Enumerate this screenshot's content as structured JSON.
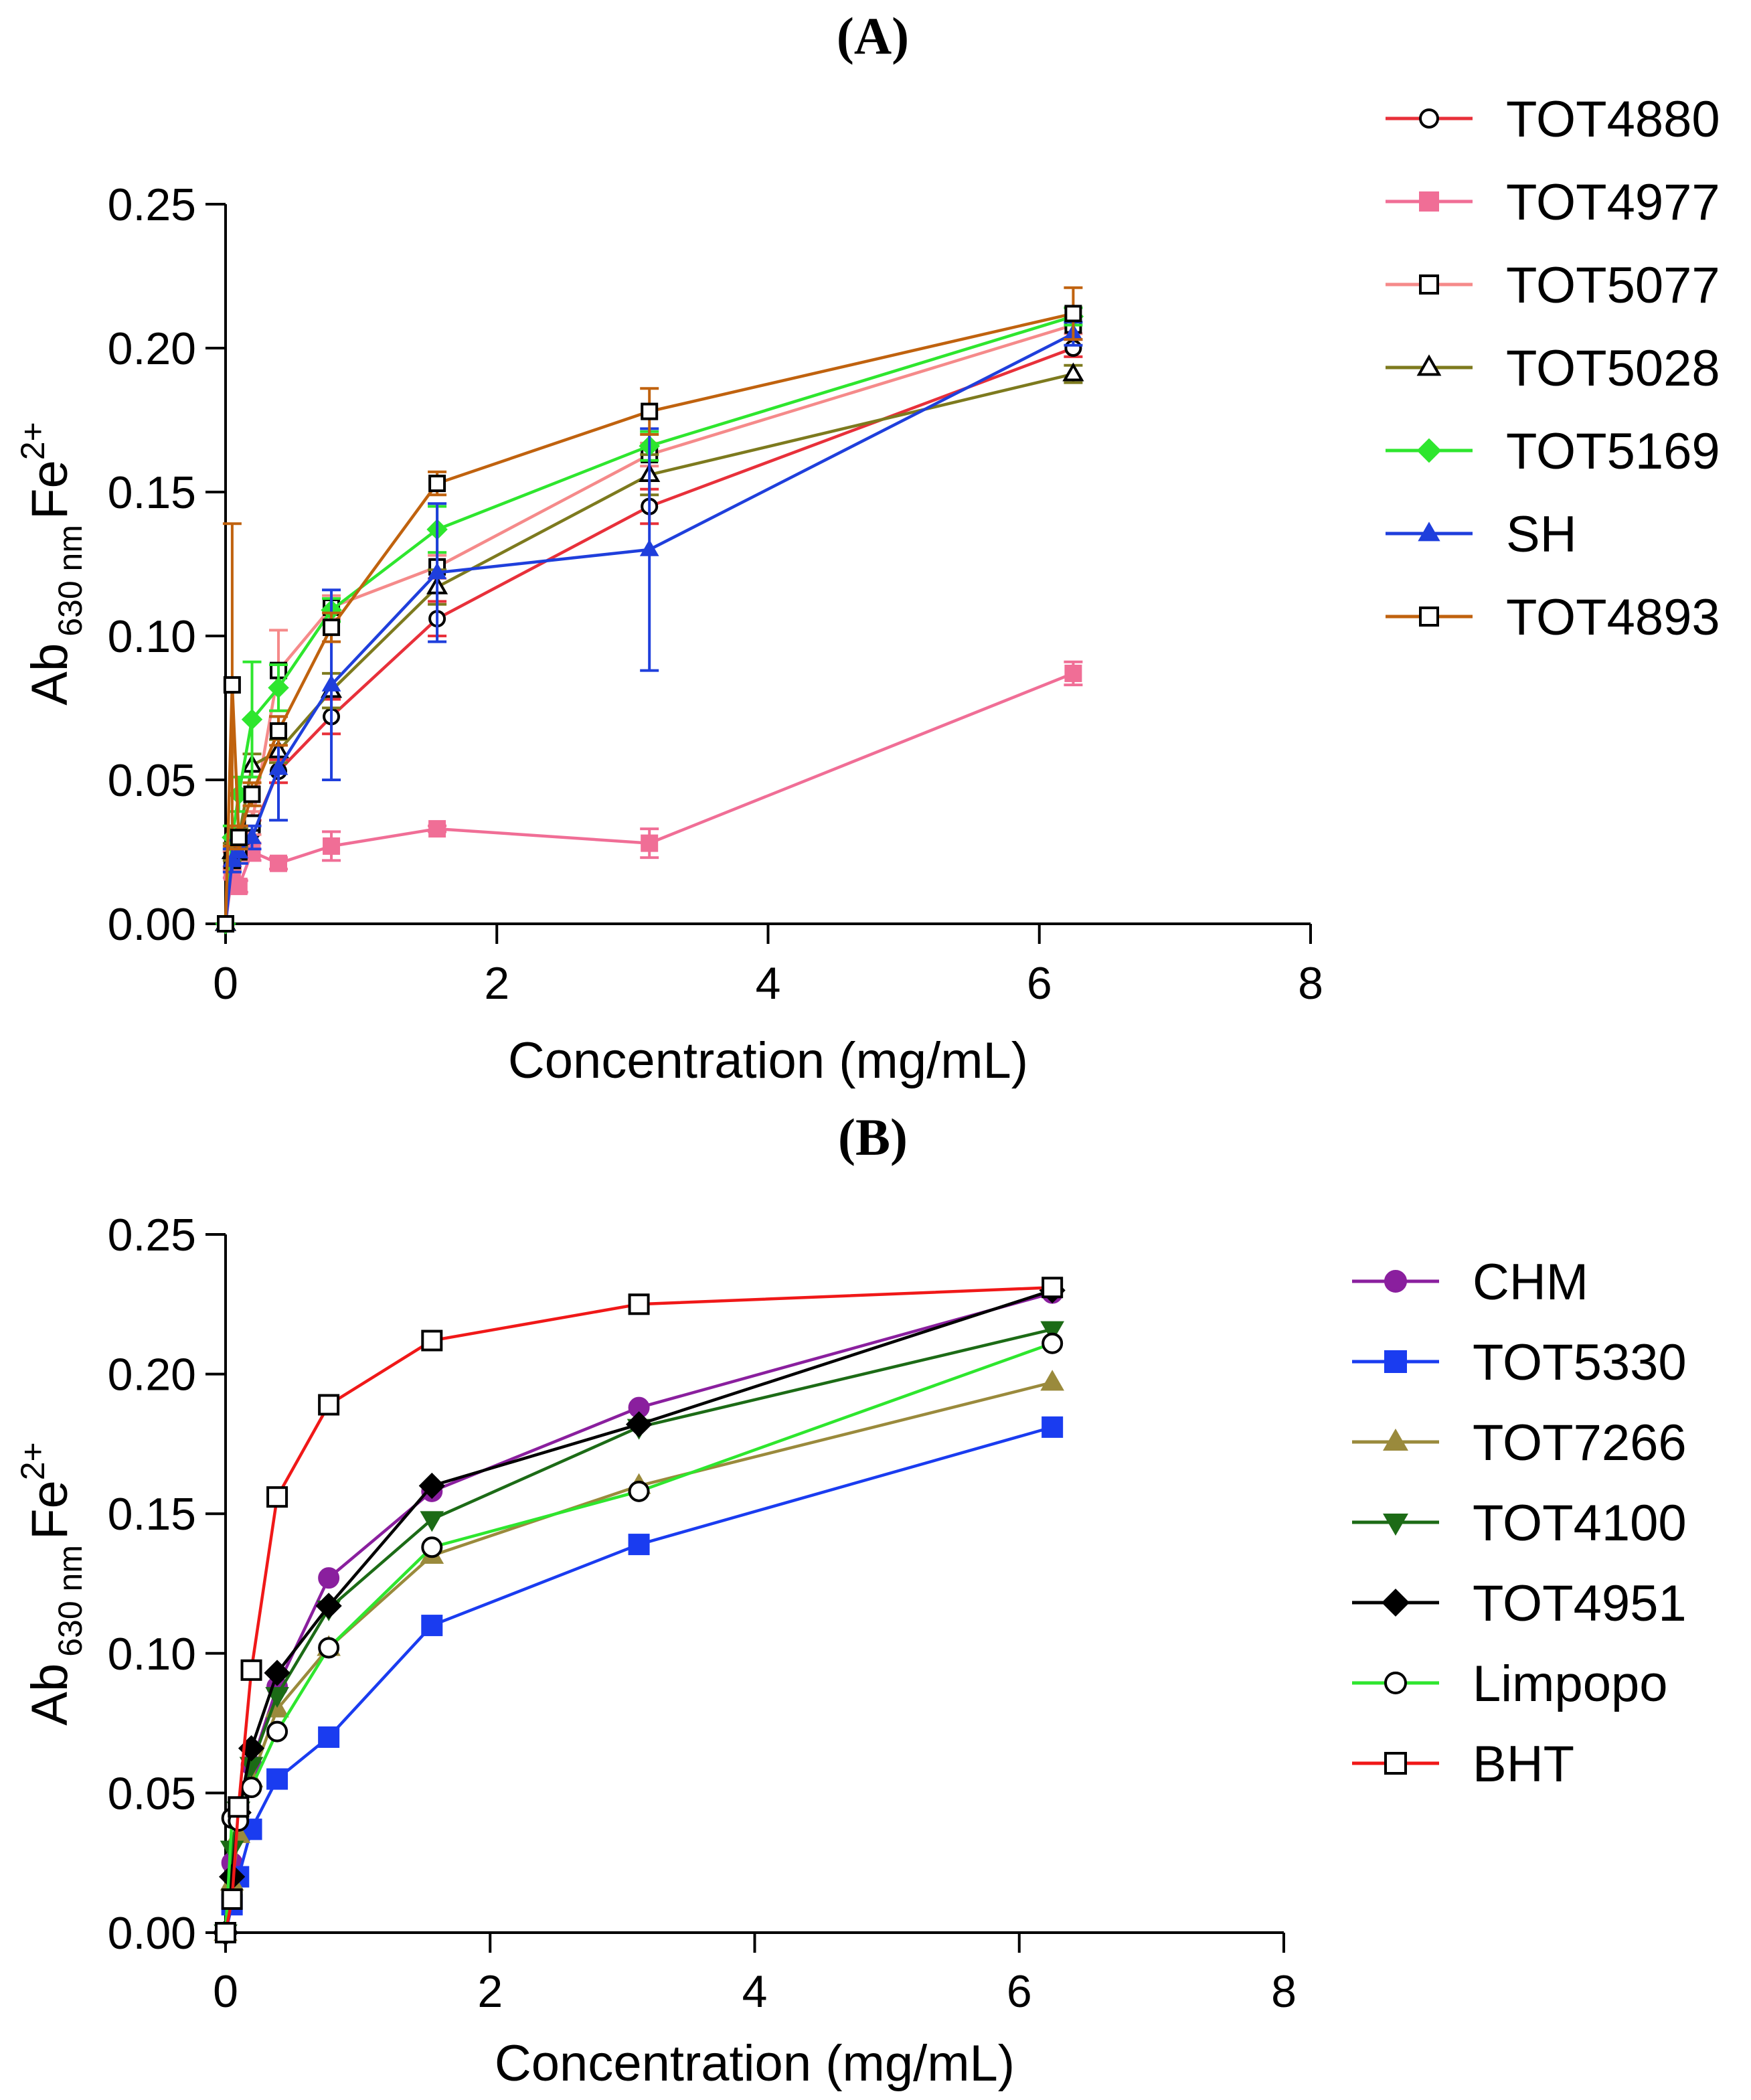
{
  "chart_data": [
    {
      "type": "line",
      "panel": "(A)",
      "title": "(A)",
      "xlabel": "Concentration (mg/mL)",
      "ylabel": {
        "base": "Ab",
        "sub": "630 nm",
        "chem": "Fe",
        "sup": "2+"
      },
      "xlim": [
        0,
        8
      ],
      "ylim": [
        0,
        0.25
      ],
      "xticks": [
        "0",
        "2",
        "4",
        "6",
        "8"
      ],
      "yticks": [
        "0.00",
        "0.05",
        "0.10",
        "0.15",
        "0.20",
        "0.25"
      ],
      "x": [
        0,
        0.0488,
        0.0977,
        0.195,
        0.39,
        0.78,
        1.56,
        3.125,
        6.25
      ],
      "series": [
        {
          "name": "TOT4880",
          "color": "#e8303a",
          "marker": "circle-open",
          "values": [
            0,
            0.022,
            0.028,
            0.032,
            0.053,
            0.072,
            0.106,
            0.145,
            0.2
          ],
          "errors": [
            0,
            0.003,
            0.003,
            0.004,
            0.004,
            0.006,
            0.006,
            0.006,
            0.003
          ]
        },
        {
          "name": "TOT4977",
          "color": "#f06e96",
          "marker": "square-filled",
          "values": [
            0,
            0.018,
            0.013,
            0.025,
            0.021,
            0.027,
            0.033,
            0.028,
            0.087
          ],
          "errors": [
            0,
            0.002,
            0.002,
            0.003,
            0.002,
            0.005,
            0.001,
            0.005,
            0.004
          ]
        },
        {
          "name": "TOT5077",
          "color": "#f58a8a",
          "marker": "square-open",
          "values": [
            0,
            0.022,
            0.025,
            0.035,
            0.088,
            0.11,
            0.124,
            0.163,
            0.208
          ],
          "errors": [
            0,
            0.003,
            0.003,
            0.004,
            0.014,
            0.004,
            0.004,
            0.004,
            0.003
          ]
        },
        {
          "name": "TOT5028",
          "color": "#7d7a1e",
          "marker": "triangle-open",
          "values": [
            0,
            0.025,
            0.03,
            0.055,
            0.06,
            0.081,
            0.117,
            0.156,
            0.191
          ],
          "errors": [
            0,
            0.003,
            0.003,
            0.004,
            0.004,
            0.006,
            0.006,
            0.007,
            0.003
          ]
        },
        {
          "name": "TOT5169",
          "color": "#2ee62e",
          "marker": "diamond-filled",
          "values": [
            0,
            0.03,
            0.045,
            0.071,
            0.082,
            0.109,
            0.137,
            0.166,
            0.211
          ],
          "errors": [
            0,
            0.004,
            0.006,
            0.02,
            0.008,
            0.004,
            0.008,
            0.005,
            0.003
          ]
        },
        {
          "name": "SH",
          "color": "#1f3fdc",
          "marker": "triangle-filled",
          "values": [
            0,
            0.022,
            0.025,
            0.03,
            0.054,
            0.083,
            0.122,
            0.13,
            0.205
          ],
          "errors": [
            0,
            0.004,
            0.004,
            0.004,
            0.018,
            0.033,
            0.024,
            0.042,
            0.004
          ]
        },
        {
          "name": "TOT4893",
          "color": "#c0620e",
          "marker": "square-open",
          "values": [
            0,
            0.083,
            0.03,
            0.045,
            0.067,
            0.103,
            0.153,
            0.178,
            0.212
          ],
          "errors": [
            0,
            0.056,
            0.004,
            0.004,
            0.005,
            0.005,
            0.004,
            0.008,
            0.009
          ]
        }
      ]
    },
    {
      "type": "line",
      "panel": "(B)",
      "title": "(B)",
      "xlabel": "Concentration (mg/mL)",
      "ylabel": {
        "base": "Ab",
        "sub": "630 nm",
        "chem": "Fe",
        "sup": "2+"
      },
      "xlim": [
        0,
        8
      ],
      "ylim": [
        0,
        0.25
      ],
      "xticks": [
        "0",
        "2",
        "4",
        "6",
        "8"
      ],
      "yticks": [
        "0.00",
        "0.05",
        "0.10",
        "0.15",
        "0.20",
        "0.25"
      ],
      "x": [
        0,
        0.0488,
        0.0977,
        0.195,
        0.39,
        0.78,
        1.56,
        3.125,
        6.25
      ],
      "series": [
        {
          "name": "CHM",
          "color": "#8a1f9e",
          "marker": "circle-filled",
          "values": [
            0,
            0.025,
            0.045,
            0.06,
            0.088,
            0.127,
            0.158,
            0.188,
            0.229
          ]
        },
        {
          "name": "TOT5330",
          "color": "#1a3cf0",
          "marker": "square-filled",
          "values": [
            0,
            0.01,
            0.02,
            0.037,
            0.055,
            0.07,
            0.11,
            0.139,
            0.181
          ]
        },
        {
          "name": "TOT7266",
          "color": "#9a8a3c",
          "marker": "triangle-filled",
          "values": [
            0,
            0.018,
            0.035,
            0.055,
            0.08,
            0.102,
            0.135,
            0.16,
            0.197
          ]
        },
        {
          "name": "TOT4100",
          "color": "#1c6b16",
          "marker": "triangle-down-filled",
          "values": [
            0,
            0.03,
            0.044,
            0.06,
            0.085,
            0.116,
            0.148,
            0.181,
            0.216
          ]
        },
        {
          "name": "TOT4951",
          "color": "#000000",
          "marker": "diamond-filled",
          "values": [
            0,
            0.02,
            0.043,
            0.066,
            0.093,
            0.117,
            0.16,
            0.182,
            0.23
          ]
        },
        {
          "name": "Limpopo",
          "color": "#2ee62e",
          "marker": "circle-open",
          "values": [
            0,
            0.041,
            0.04,
            0.052,
            0.072,
            0.102,
            0.138,
            0.158,
            0.211
          ]
        },
        {
          "name": "BHT",
          "color": "#f01818",
          "marker": "square-open",
          "values": [
            0,
            0.012,
            0.045,
            0.094,
            0.156,
            0.189,
            0.212,
            0.225,
            0.231
          ]
        }
      ]
    }
  ]
}
